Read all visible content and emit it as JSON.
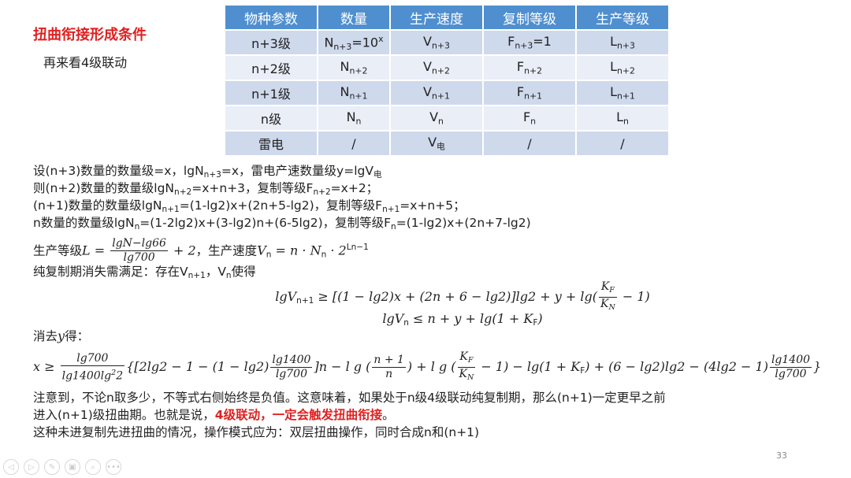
{
  "title": "扭曲衔接形成条件",
  "subtitle": "再来看4级联动",
  "table": {
    "headers": [
      "物种参数",
      "数量",
      "生产速度",
      "复制等级",
      "生产等级"
    ],
    "rows": [
      [
        [
          {
            "t": "n+3级"
          }
        ],
        [
          {
            "t": "N"
          },
          {
            "sub": "n+3"
          },
          {
            "t": "=10"
          },
          {
            "sup": "x"
          }
        ],
        [
          {
            "t": "V"
          },
          {
            "sub": "n+3"
          }
        ],
        [
          {
            "t": "F"
          },
          {
            "sub": "n+3"
          },
          {
            "t": "=1"
          }
        ],
        [
          {
            "t": "L"
          },
          {
            "sub": "n+3"
          }
        ]
      ],
      [
        [
          {
            "t": "n+2级"
          }
        ],
        [
          {
            "t": "N"
          },
          {
            "sub": "n+2"
          }
        ],
        [
          {
            "t": "V"
          },
          {
            "sub": "n+2"
          }
        ],
        [
          {
            "t": "F"
          },
          {
            "sub": "n+2"
          }
        ],
        [
          {
            "t": "L"
          },
          {
            "sub": "n+2"
          }
        ]
      ],
      [
        [
          {
            "t": "n+1级"
          }
        ],
        [
          {
            "t": "N"
          },
          {
            "sub": "n+1"
          }
        ],
        [
          {
            "t": "V"
          },
          {
            "sub": "n+1"
          }
        ],
        [
          {
            "t": "F"
          },
          {
            "sub": "n+1"
          }
        ],
        [
          {
            "t": "L"
          },
          {
            "sub": "n+1"
          }
        ]
      ],
      [
        [
          {
            "t": "n级"
          }
        ],
        [
          {
            "t": "N"
          },
          {
            "sub": "n"
          }
        ],
        [
          {
            "t": "V"
          },
          {
            "sub": "n"
          }
        ],
        [
          {
            "t": "F"
          },
          {
            "sub": "n"
          }
        ],
        [
          {
            "t": "L"
          },
          {
            "sub": "n"
          }
        ]
      ],
      [
        [
          {
            "t": "雷电"
          }
        ],
        [
          {
            "t": "/"
          }
        ],
        [
          {
            "t": "V"
          },
          {
            "sub": "电"
          }
        ],
        [
          {
            "t": "/"
          }
        ],
        [
          {
            "t": "/"
          }
        ]
      ]
    ]
  },
  "lines": [
    {
      "cls": "",
      "segs": [
        {
          "t": "设(n+3)数量的数量级=x，lgN"
        },
        {
          "sub": "n+3"
        },
        {
          "t": "=x，雷电产速数量级y=lgV"
        },
        {
          "sub": "电"
        }
      ]
    },
    {
      "cls": "",
      "segs": [
        {
          "t": "则(n+2)数量的数量级lgN"
        },
        {
          "sub": "n+2"
        },
        {
          "t": "=x+n+3，复制等级F"
        },
        {
          "sub": "n+2"
        },
        {
          "t": "=x+2；"
        }
      ]
    },
    {
      "cls": "",
      "segs": [
        {
          "t": "(n+1)数量的数量级lgN"
        },
        {
          "sub": "n+1"
        },
        {
          "t": "=(1-lg2)x+(2n+5-lg2)，复制等级F"
        },
        {
          "sub": "n+1"
        },
        {
          "t": "=x+n+5；"
        }
      ]
    },
    {
      "cls": "",
      "segs": [
        {
          "t": "n数量的数量级lgN"
        },
        {
          "sub": "n"
        },
        {
          "t": "=(1-2lg2)x+(3-lg2)n+(6-5lg2)，复制等级F"
        },
        {
          "sub": "n"
        },
        {
          "t": "=(1-lg2)x+(2n+7-lg2)"
        }
      ]
    },
    {
      "cls": "tall",
      "segs": [
        {
          "t": "生产等级"
        },
        {
          "m": "L = "
        },
        {
          "num": [
            {
              "t": "lgN−lg66"
            }
          ],
          "den": [
            {
              "t": "lg700"
            }
          ]
        },
        {
          "m": " + 2"
        },
        {
          "t": "，生产速度"
        },
        {
          "m": "V"
        },
        {
          "sub": "n"
        },
        {
          "m": " = n · N"
        },
        {
          "sub": "n"
        },
        {
          "m": " · 2"
        },
        {
          "sup": "Ln−1"
        }
      ]
    },
    {
      "cls": "",
      "segs": [
        {
          "t": "纯复制期消失需满足：存在V"
        },
        {
          "sub": "n+1"
        },
        {
          "t": "，V"
        },
        {
          "sub": "n"
        },
        {
          "t": "使得"
        }
      ]
    },
    {
      "cls": "fm center",
      "segs": [
        {
          "m": "lgV"
        },
        {
          "sub": "n+1"
        },
        {
          "m": " ≥ [(1 − lg2)x + (2n + 6 − lg2)]lg2 + y + lg("
        },
        {
          "num": [
            {
              "t": "K"
            },
            {
              "sub": "F"
            }
          ],
          "den": [
            {
              "t": "K"
            },
            {
              "sub": "N"
            }
          ]
        },
        {
          "m": " − 1)"
        }
      ]
    },
    {
      "cls": "center",
      "segs": [
        {
          "m": "lgV"
        },
        {
          "sub": "n"
        },
        {
          "m": " ≤ n + y + lg(1 + K"
        },
        {
          "sub": "F"
        },
        {
          "m": ")"
        }
      ]
    },
    {
      "cls": "",
      "segs": [
        {
          "t": "消去"
        },
        {
          "m": "y"
        },
        {
          "t": "得："
        }
      ]
    },
    {
      "cls": "big",
      "segs": [
        {
          "m": "x ≥ "
        },
        {
          "num": [
            {
              "t": "lg700"
            }
          ],
          "den": [
            {
              "t": "lg1400lg"
            },
            {
              "sup": "2"
            },
            {
              "t": "2"
            }
          ]
        },
        {
          "m": "{[2lg2 − 1 − (1 − lg2)"
        },
        {
          "num": [
            {
              "t": "lg1400"
            }
          ],
          "den": [
            {
              "t": "lg700"
            }
          ]
        },
        {
          "m": "]n − l g ("
        },
        {
          "num": [
            {
              "t": "n + 1"
            }
          ],
          "den": [
            {
              "t": "n"
            }
          ]
        },
        {
          "m": ") + l g ("
        },
        {
          "num": [
            {
              "t": "K"
            },
            {
              "sub": "F"
            }
          ],
          "den": [
            {
              "t": "K"
            },
            {
              "sub": "N"
            }
          ]
        },
        {
          "m": " − 1) − lg(1 + K"
        },
        {
          "sub": "F"
        },
        {
          "m": ") + (6 − lg2)lg2 − (4lg2 − 1)"
        },
        {
          "num": [
            {
              "t": "lg1400"
            }
          ],
          "den": [
            {
              "t": "lg700"
            }
          ]
        },
        {
          "m": "}"
        }
      ]
    },
    {
      "cls": "",
      "segs": [
        {
          "t": "注意到，不论n取多少，不等式右侧始终是负值。这意味着，如果处于n级4级联动纯复制期，那么(n+1)一定更早之前"
        }
      ]
    },
    {
      "cls": "",
      "segs": [
        {
          "t": "进入(n+1)级扭曲期。也就是说，"
        },
        {
          "red": "4级联动，一定会触发扭曲衔接"
        },
        {
          "t": "。"
        }
      ]
    },
    {
      "cls": "",
      "segs": [
        {
          "t": "这种未进复制先进扭曲的情况，操作模式应为：双层扭曲操作，同时合成n和(n+1)"
        }
      ]
    }
  ],
  "page_number": "33",
  "nav_icons": [
    "previous-icon",
    "next-icon",
    "pen-icon",
    "slides-icon",
    "zoom-icon",
    "more-icon"
  ],
  "colors": {
    "title": "#e02020",
    "table_header": "#4f8fd0",
    "row_odd": "#cfd9ec",
    "row_even": "#e9eef7"
  }
}
